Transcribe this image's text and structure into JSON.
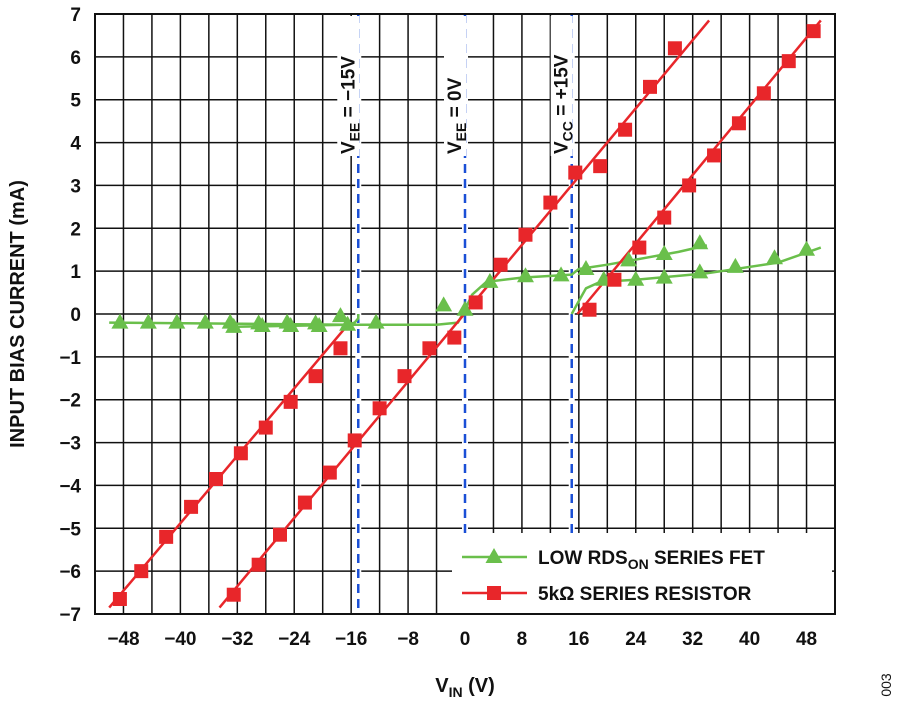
{
  "chart_data": {
    "type": "line",
    "xlabel": {
      "main": "V",
      "sub": "IN",
      "rest": " (V)"
    },
    "ylabel": "INPUT BIAS CURRENT (mA)",
    "xlim": [
      -52,
      52
    ],
    "ylim": [
      -7,
      7
    ],
    "x_ticks": [
      -48,
      -40,
      -32,
      -24,
      -16,
      -8,
      0,
      8,
      16,
      24,
      32,
      40,
      48
    ],
    "x_tick_labels": [
      "−48",
      "−40",
      "−32",
      "−24",
      "−16",
      "−8",
      "0",
      "8",
      "16",
      "24",
      "32",
      "40",
      "48"
    ],
    "y_ticks": [
      7,
      6,
      5,
      4,
      3,
      2,
      1,
      0,
      -1,
      -2,
      -3,
      -4,
      -5,
      -6,
      -7
    ],
    "y_tick_labels": [
      "7",
      "6",
      "5",
      "4",
      "3",
      "2",
      "1",
      "0",
      "−1",
      "−2",
      "−3",
      "−4",
      "−5",
      "−6",
      "−7"
    ],
    "grid": true,
    "legend_position": "bottom-right",
    "ref_lines": [
      {
        "x": -15,
        "pre": "V",
        "sub": "EE",
        "post": " = −15V"
      },
      {
        "x": 0,
        "pre": "V",
        "sub": "EE",
        "post": " = 0V"
      },
      {
        "x": 15,
        "pre": "V",
        "sub": "CC",
        "post": " = +15V"
      }
    ],
    "series": [
      {
        "name": "LOW RDSON SERIES FET",
        "legend": {
          "pre": "LOW RDS",
          "sub": "ON",
          "post": " SERIES FET"
        },
        "color": "#6abf4b",
        "marker": "triangle",
        "curves": [
          {
            "x": [
              -50,
              -16,
              -15,
              -12,
              -8,
              -4,
              -1,
              0,
              1,
              3,
              8,
              15,
              16,
              20,
              30,
              34
            ],
            "y": [
              -0.2,
              -0.25,
              -0.25,
              -0.25,
              -0.25,
              -0.25,
              -0.2,
              0.1,
              0.45,
              0.75,
              0.85,
              0.92,
              1.05,
              1.15,
              1.45,
              1.6
            ]
          },
          {
            "x": [
              -33,
              -16.5,
              -15.5,
              -15,
              -15
            ],
            "y": [
              -0.3,
              -0.25,
              -0.2,
              -0.1,
              0.0
            ]
          },
          {
            "x": [
              15,
              16,
              17,
              19,
              24,
              34,
              44,
              50
            ],
            "y": [
              0.0,
              0.3,
              0.6,
              0.75,
              0.8,
              0.95,
              1.2,
              1.55
            ]
          }
        ],
        "markers": [
          {
            "x": [
              -48.5,
              -44.5,
              -40.5,
              -36.5,
              -33,
              -29,
              -25,
              -21,
              -17.5,
              -12.5,
              -3,
              0,
              3.5,
              8.5,
              13.5,
              17,
              23,
              28,
              33
            ],
            "y": [
              -0.2,
              -0.2,
              -0.2,
              -0.2,
              -0.2,
              -0.22,
              -0.2,
              -0.22,
              -0.05,
              -0.2,
              0.2,
              0.1,
              0.75,
              0.88,
              0.9,
              1.05,
              1.25,
              1.4,
              1.65
            ]
          },
          {
            "x": [
              -32.5,
              -28.5,
              -24.5,
              -20.5,
              -16.5
            ],
            "y": [
              -0.3,
              -0.28,
              -0.28,
              -0.28,
              -0.25
            ]
          },
          {
            "x": [
              19.5,
              24,
              28,
              33,
              38,
              43.5,
              48
            ],
            "y": [
              0.8,
              0.8,
              0.85,
              0.97,
              1.1,
              1.3,
              1.5
            ]
          }
        ]
      },
      {
        "name": "5kΩ SERIES RESISTOR",
        "legend": {
          "pre": "5kΩ SERIES RESISTOR",
          "sub": "",
          "post": ""
        },
        "color": "#e8262a",
        "marker": "square",
        "curves": [
          {
            "x": [
              -50,
              -16.2
            ],
            "y": [
              -6.85,
              -0.2
            ]
          },
          {
            "x": [
              -34.5,
              34.3
            ],
            "y": [
              -6.85,
              6.85
            ]
          },
          {
            "x": [
              15.8,
              50
            ],
            "y": [
              0.0,
              6.85
            ]
          }
        ],
        "markers": [
          {
            "x": [
              -48.5,
              -45.5,
              -42,
              -38.5,
              -35,
              -31.5,
              -28,
              -24.5,
              -21,
              -17.5
            ],
            "y": [
              -6.65,
              -6.0,
              -5.2,
              -4.5,
              -3.85,
              -3.25,
              -2.65,
              -2.05,
              -1.45,
              -0.8
            ]
          },
          {
            "x": [
              -32.5,
              -29,
              -26,
              -22.5,
              -19,
              -15.5,
              -12,
              -8.5,
              -5,
              -1.5,
              1.5,
              5,
              8.5,
              12,
              15.5,
              19,
              22.5,
              26,
              29.5
            ],
            "y": [
              -6.55,
              -5.85,
              -5.15,
              -4.4,
              -3.7,
              -2.95,
              -2.2,
              -1.45,
              -0.8,
              -0.55,
              0.27,
              1.15,
              1.85,
              2.6,
              3.3,
              3.45,
              4.3,
              5.3,
              6.2
            ]
          },
          {
            "x": [
              17.5,
              21,
              24.5,
              28,
              31.5,
              35,
              38.5,
              42,
              45.5,
              49
            ],
            "y": [
              0.1,
              0.8,
              1.55,
              2.25,
              3.0,
              3.7,
              4.45,
              5.15,
              5.9,
              6.6
            ]
          }
        ]
      }
    ],
    "figure_id": "003"
  }
}
